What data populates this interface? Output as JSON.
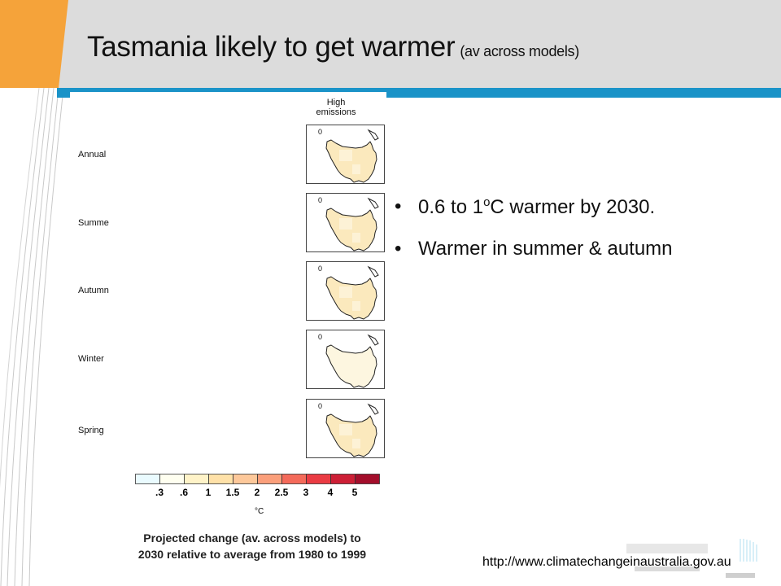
{
  "slide": {
    "title": "Tasmania likely to get warmer",
    "subtitle": "(av across models)"
  },
  "figure": {
    "column_header": "High emissions",
    "season_labels": [
      "Annual",
      "Summe",
      "Autumn",
      "Winter",
      "Spring"
    ],
    "map_panel_label": "0",
    "colorbar": {
      "colors": [
        "#eafbff",
        "#fffff0",
        "#fff3c8",
        "#ffe1a8",
        "#fdc89a",
        "#fb9f7b",
        "#f46a5a",
        "#ea3b43",
        "#cd1f36",
        "#a30e2b"
      ],
      "tick_labels": [
        ".3",
        ".6",
        "1",
        "1.5",
        "2",
        "2.5",
        "3",
        "4",
        "5"
      ],
      "unit": "°C"
    },
    "caption_line1": "Projected change (av. across models) to",
    "caption_line2": "2030 relative to average from 1980 to 1999"
  },
  "bullets": {
    "glyph": "•",
    "b1_pre": "0.6 to 1",
    "b1_sup": "o",
    "b1_post": "C  warmer by 2030.",
    "b2": "Warmer in summer & autumn"
  },
  "footer": {
    "url": "http://www.climatechangeinaustralia.gov.au"
  },
  "colors": {
    "header_band": "#dcdcdc",
    "accent_blue": "#1a93c8",
    "accent_orange": "#f5a33a",
    "map_fill_warm": "#fbe9bd",
    "map_fill_light": "#fdf6e0"
  }
}
